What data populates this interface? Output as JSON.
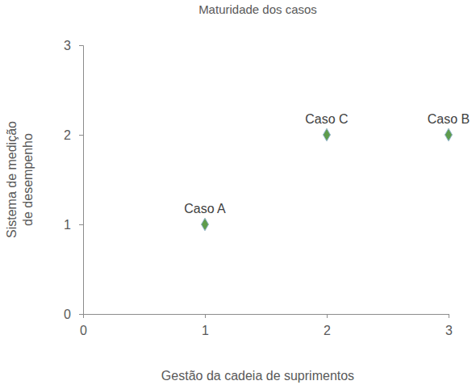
{
  "chart_data": {
    "type": "scatter",
    "title": "Maturidade dos casos",
    "x_label": "Gestão da cadeia de suprimentos",
    "y_label": [
      "Sistema de medição",
      "de desempenho"
    ],
    "x": [
      1,
      2,
      3
    ],
    "values": [
      1,
      2,
      2
    ],
    "labels": [
      "Caso A",
      "Caso C",
      "Caso B"
    ],
    "color": "#5e9c4c",
    "marker": "diamond",
    "xlim": [
      0,
      3
    ],
    "ylim": [
      0,
      3
    ],
    "xticks": [
      0,
      1,
      2,
      3
    ],
    "yticks": [
      0,
      1,
      2,
      3
    ],
    "grid": false
  }
}
